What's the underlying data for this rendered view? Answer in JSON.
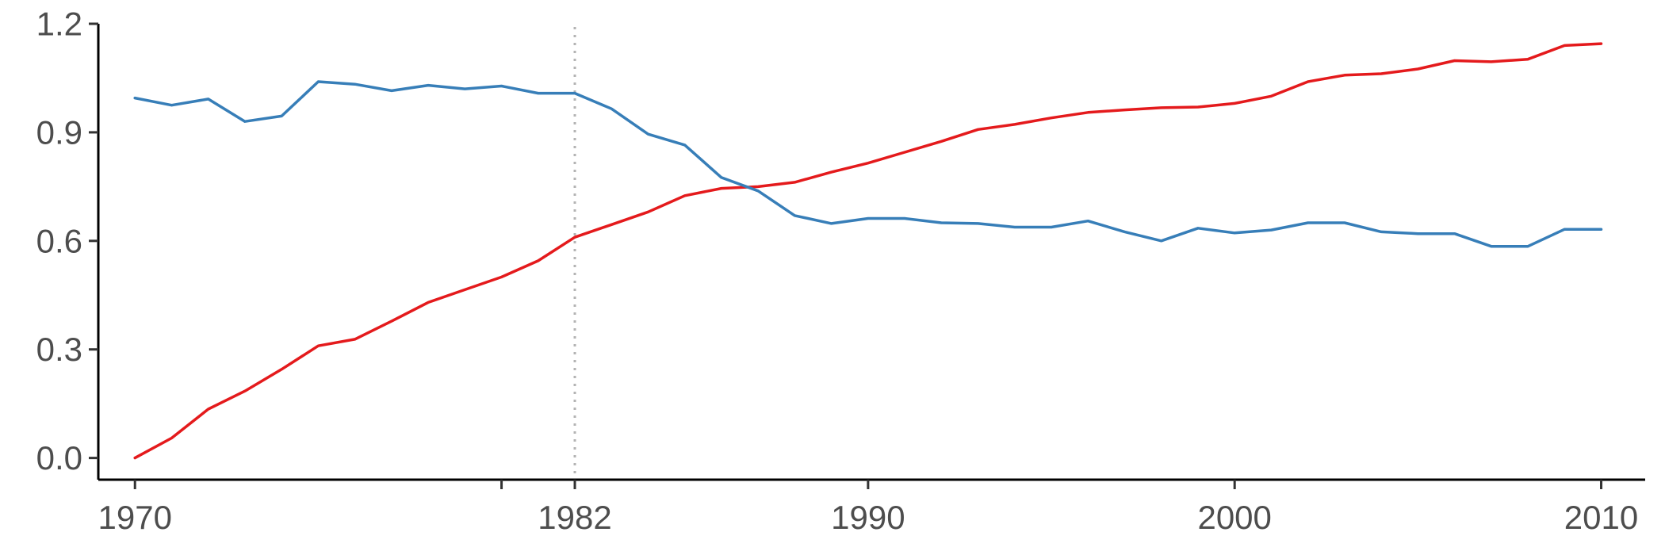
{
  "chart_data": {
    "type": "line",
    "title": "",
    "xlabel": "",
    "ylabel": "",
    "xlim": [
      1969.0,
      2011.2
    ],
    "ylim": [
      -0.06,
      1.2
    ],
    "x_ticks": [
      1970,
      1980,
      1982,
      1990,
      2000,
      2010
    ],
    "x_tick_labels": [
      "1970",
      "",
      "1982",
      "1990",
      "2000",
      "2010"
    ],
    "y_ticks": [
      0.0,
      0.3,
      0.6,
      0.9,
      1.2
    ],
    "y_tick_labels": [
      "0.0",
      "0.3",
      "0.6",
      "0.9",
      "1.2"
    ],
    "grid": false,
    "legend": "none",
    "reference_lines": [
      {
        "axis": "x",
        "value": 1982,
        "style": "dotted",
        "color": "#b3b3b3"
      }
    ],
    "x": [
      1970,
      1971,
      1972,
      1973,
      1974,
      1975,
      1976,
      1977,
      1978,
      1979,
      1980,
      1981,
      1982,
      1983,
      1984,
      1985,
      1986,
      1987,
      1988,
      1989,
      1990,
      1991,
      1992,
      1993,
      1994,
      1995,
      1996,
      1997,
      1998,
      1999,
      2000,
      2001,
      2002,
      2003,
      2004,
      2005,
      2006,
      2007,
      2008,
      2009,
      2010
    ],
    "series": [
      {
        "color": "#e41a1c",
        "values": [
          0.0,
          0.055,
          0.135,
          0.185,
          0.245,
          0.31,
          0.328,
          0.378,
          0.43,
          0.465,
          0.5,
          0.545,
          0.61,
          0.645,
          0.68,
          0.725,
          0.745,
          0.75,
          0.762,
          0.79,
          0.815,
          0.845,
          0.875,
          0.908,
          0.922,
          0.94,
          0.955,
          0.962,
          0.968,
          0.97,
          0.98,
          1.0,
          1.04,
          1.058,
          1.062,
          1.075,
          1.098,
          1.095,
          1.102,
          1.14,
          1.145
        ]
      },
      {
        "color": "#377eb8",
        "values": [
          0.995,
          0.975,
          0.992,
          0.93,
          0.945,
          1.04,
          1.033,
          1.015,
          1.03,
          1.02,
          1.028,
          1.008,
          1.008,
          0.965,
          0.895,
          0.865,
          0.775,
          0.738,
          0.67,
          0.648,
          0.662,
          0.662,
          0.65,
          0.648,
          0.638,
          0.638,
          0.655,
          0.625,
          0.6,
          0.635,
          0.622,
          0.63,
          0.65,
          0.65,
          0.625,
          0.62,
          0.62,
          0.585,
          0.585,
          0.632,
          0.632
        ]
      }
    ]
  }
}
